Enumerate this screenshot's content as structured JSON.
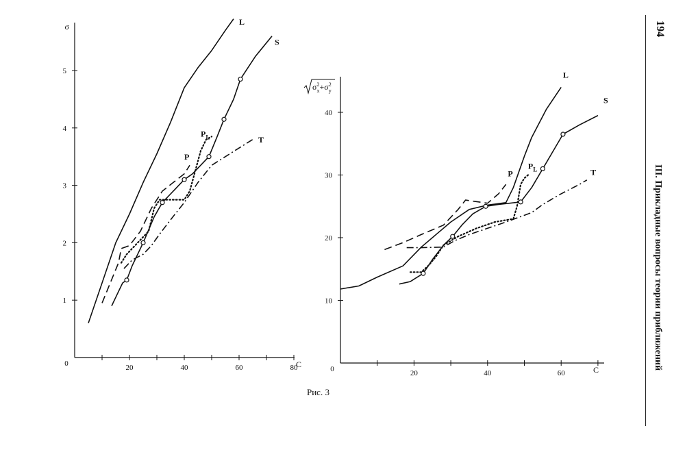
{
  "page": {
    "number": "194",
    "running_head": "III. Прикладные вопросы теории приближений",
    "caption": "Рис. 3"
  },
  "chart_data": [
    {
      "type": "line",
      "xlabel": "C",
      "ylabel": "σ",
      "xlim": [
        0,
        80
      ],
      "ylim": [
        0,
        5.5
      ],
      "xticks": [
        20,
        40,
        60,
        80
      ],
      "yticks": [
        1,
        2,
        3,
        4,
        5
      ],
      "origin_label": "0",
      "series": [
        {
          "name": "L",
          "style": "solid",
          "x": [
            5,
            10,
            15,
            20,
            25,
            30,
            35,
            40,
            45,
            50,
            55,
            58
          ],
          "y": [
            0.6,
            1.3,
            2.0,
            2.5,
            3.05,
            3.55,
            4.1,
            4.7,
            5.05,
            5.35,
            5.7,
            5.9
          ],
          "markers": []
        },
        {
          "name": "S",
          "style": "solid",
          "x": [
            13.5,
            15.5,
            17.5,
            19,
            21,
            23,
            25,
            29,
            32,
            38,
            40,
            43,
            49,
            52,
            54.5,
            58,
            60.5,
            66,
            72
          ],
          "y": [
            0.9,
            1.1,
            1.3,
            1.35,
            1.6,
            1.8,
            2.0,
            2.45,
            2.7,
            3.0,
            3.1,
            3.2,
            3.5,
            3.85,
            4.15,
            4.5,
            4.85,
            5.25,
            5.6
          ],
          "markers": [
            [
              19,
              1.35
            ],
            [
              25,
              2.0
            ],
            [
              32,
              2.7
            ],
            [
              40,
              3.1
            ],
            [
              49,
              3.5
            ],
            [
              54.5,
              4.15
            ],
            [
              60.5,
              4.85
            ]
          ]
        },
        {
          "name": "P",
          "style": "dashed",
          "x": [
            10,
            13,
            16,
            17,
            20,
            24,
            28,
            32,
            36,
            40,
            42
          ],
          "y": [
            0.95,
            1.3,
            1.65,
            1.9,
            1.95,
            2.2,
            2.6,
            2.9,
            3.05,
            3.2,
            3.35
          ],
          "markers": []
        },
        {
          "name": "P_L",
          "style": "dotted",
          "x": [
            17,
            19,
            21,
            24,
            27,
            29,
            31,
            37,
            40,
            42,
            44,
            46,
            48,
            50
          ],
          "y": [
            1.65,
            1.8,
            1.9,
            2.05,
            2.2,
            2.6,
            2.75,
            2.75,
            2.75,
            2.9,
            3.25,
            3.6,
            3.8,
            3.85
          ],
          "markers": []
        },
        {
          "name": "T",
          "style": "dashdot",
          "x": [
            18,
            21,
            25,
            28,
            31,
            35,
            40,
            45,
            50,
            55,
            60,
            65
          ],
          "y": [
            1.55,
            1.7,
            1.8,
            1.95,
            2.15,
            2.4,
            2.7,
            3.05,
            3.35,
            3.5,
            3.65,
            3.8
          ],
          "markers": []
        }
      ],
      "labels": [
        {
          "text": "L",
          "x": 60,
          "y": 5.8
        },
        {
          "text": "S",
          "x": 73,
          "y": 5.45
        },
        {
          "text": "P",
          "x": 40,
          "y": 3.45
        },
        {
          "text": "P",
          "sub": "L",
          "x": 46,
          "y": 3.85
        },
        {
          "text": "T",
          "x": 67,
          "y": 3.75
        }
      ]
    },
    {
      "type": "line",
      "xlabel": "C",
      "ylabel": "√(σx² + σy²)",
      "ylabel_base": "σ",
      "ylabel_sub_x": "x",
      "ylabel_sub_y": "y",
      "ylabel_sup": "2",
      "ylabel_plus": "+",
      "xlim": [
        0,
        70
      ],
      "ylim": [
        0,
        45
      ],
      "xticks": [
        20,
        40,
        60
      ],
      "yticks": [
        10,
        20,
        30,
        40
      ],
      "origin_label": "0",
      "series": [
        {
          "name": "L",
          "style": "solid",
          "x": [
            0,
            5,
            10,
            17,
            22,
            30,
            35,
            40,
            45,
            47,
            50,
            52,
            56,
            60
          ],
          "y": [
            11.8,
            12.3,
            13.7,
            15.5,
            18.5,
            22.5,
            24.5,
            25.2,
            25.6,
            28,
            33,
            36,
            40.5,
            44
          ],
          "markers": []
        },
        {
          "name": "S",
          "style": "solid",
          "x": [
            16,
            19,
            22.5,
            25,
            28,
            30.5,
            33,
            36,
            39.5,
            43,
            46,
            49,
            52,
            55,
            58,
            60.5,
            65,
            70
          ],
          "y": [
            12.6,
            13.0,
            14.3,
            16.5,
            18.8,
            20.2,
            22.0,
            23.8,
            25.0,
            25.3,
            25.5,
            25.7,
            28.0,
            31.0,
            34.0,
            36.5,
            38.0,
            39.5
          ],
          "markers": [
            [
              22.5,
              14.3
            ],
            [
              30.5,
              20.2
            ],
            [
              39.5,
              25.0
            ],
            [
              49,
              25.7
            ],
            [
              55,
              31.0
            ],
            [
              60.5,
              36.5
            ]
          ]
        },
        {
          "name": "P",
          "style": "dashed",
          "x": [
            12,
            17,
            22,
            28,
            32,
            34,
            40,
            43,
            45
          ],
          "y": [
            18.1,
            19.2,
            20.5,
            22.0,
            24.5,
            26.0,
            25.5,
            27.0,
            28.5
          ],
          "markers": []
        },
        {
          "name": "P_L",
          "style": "dotted",
          "x": [
            19,
            22,
            24,
            26,
            28,
            32,
            37,
            42,
            47,
            48,
            49,
            50,
            51
          ],
          "y": [
            14.5,
            14.5,
            15.6,
            17.0,
            18.8,
            20.2,
            21.5,
            22.5,
            23.0,
            25.0,
            28.5,
            29.5,
            30.0
          ],
          "markers": []
        },
        {
          "name": "T",
          "style": "dashdot",
          "x": [
            18,
            22,
            28,
            31,
            35,
            40,
            45,
            52,
            55,
            60,
            65,
            67
          ],
          "y": [
            18.4,
            18.4,
            18.5,
            19.5,
            20.5,
            21.5,
            22.5,
            24.0,
            25.3,
            27.0,
            28.5,
            29.2
          ],
          "markers": []
        }
      ],
      "labels": [
        {
          "text": "L",
          "x": 60.5,
          "y": 45.5
        },
        {
          "text": "S",
          "x": 71.5,
          "y": 41.5
        },
        {
          "text": "P",
          "x": 45.5,
          "y": 29.8
        },
        {
          "text": "P",
          "sub": "L",
          "x": 51,
          "y": 31
        },
        {
          "text": "T",
          "x": 68,
          "y": 30
        }
      ]
    }
  ]
}
